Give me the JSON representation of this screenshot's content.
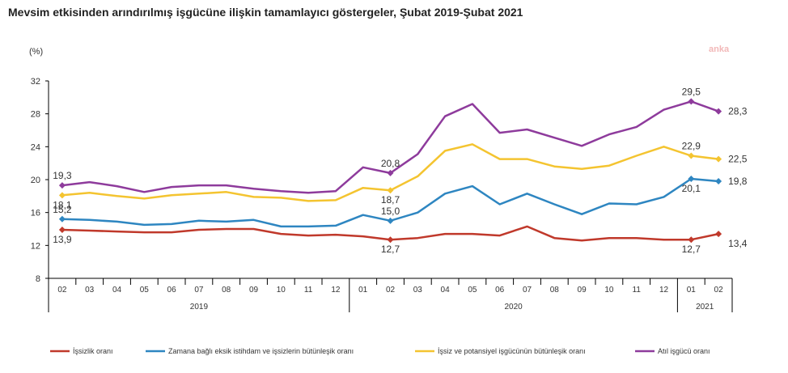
{
  "title": "Mevsim etkisinden arındırılmış işgücüne ilişkin tamamlayıcı göstergeler, Şubat 2019-Şubat 2021",
  "watermark": "anka",
  "chart_data": {
    "type": "line",
    "ylabel": "(%)",
    "ylim": [
      8,
      32
    ],
    "yticks": [
      8,
      12,
      16,
      20,
      24,
      28,
      32
    ],
    "grid": false,
    "legend_position": "bottom",
    "categories": [
      "02",
      "03",
      "04",
      "05",
      "06",
      "07",
      "08",
      "09",
      "10",
      "11",
      "12",
      "01",
      "02",
      "03",
      "04",
      "05",
      "06",
      "07",
      "08",
      "09",
      "10",
      "11",
      "12",
      "01",
      "02"
    ],
    "year_groups": [
      {
        "label": "2019",
        "start": 0,
        "end": 10
      },
      {
        "label": "2020",
        "start": 11,
        "end": 22
      },
      {
        "label": "2021",
        "start": 23,
        "end": 24
      }
    ],
    "series": [
      {
        "name": "İşsizlik oranı",
        "color": "#c0392b",
        "values": [
          13.9,
          13.8,
          13.7,
          13.6,
          13.6,
          13.9,
          14.0,
          14.0,
          13.4,
          13.2,
          13.3,
          13.1,
          12.7,
          12.9,
          13.4,
          13.4,
          13.2,
          14.3,
          12.9,
          12.6,
          12.9,
          12.9,
          12.7,
          12.7,
          13.4
        ]
      },
      {
        "name": "Zamana bağlı eksik istihdam ve işsizlerin bütünleşik oranı",
        "color": "#2e86c1",
        "values": [
          15.2,
          15.1,
          14.9,
          14.5,
          14.6,
          15.0,
          14.9,
          15.1,
          14.3,
          14.3,
          14.4,
          15.7,
          15.0,
          16.0,
          18.3,
          19.2,
          17.0,
          18.3,
          17.0,
          15.8,
          17.1,
          17.0,
          17.9,
          20.1,
          19.8
        ]
      },
      {
        "name": "İşsiz ve potansiyel işgücünün bütünleşik oranı",
        "color": "#f4c430",
        "values": [
          18.1,
          18.4,
          18.0,
          17.7,
          18.1,
          18.3,
          18.5,
          17.9,
          17.8,
          17.4,
          17.5,
          19.0,
          18.7,
          20.4,
          23.5,
          24.3,
          22.5,
          22.5,
          21.6,
          21.3,
          21.7,
          22.9,
          24.0,
          22.9,
          22.5
        ]
      },
      {
        "name": "Atıl işgücü oranı",
        "color": "#8e3b9c",
        "values": [
          19.3,
          19.7,
          19.2,
          18.5,
          19.1,
          19.3,
          19.3,
          18.9,
          18.6,
          18.4,
          18.6,
          21.5,
          20.8,
          23.1,
          27.7,
          29.2,
          25.7,
          26.1,
          25.1,
          24.1,
          25.5,
          26.4,
          28.5,
          29.5,
          28.3
        ]
      }
    ],
    "annotations": [
      {
        "series": 0,
        "index": 0,
        "text": "13,9",
        "pos": "below"
      },
      {
        "series": 0,
        "index": 12,
        "text": "12,7",
        "pos": "below"
      },
      {
        "series": 0,
        "index": 23,
        "text": "12,7",
        "pos": "below"
      },
      {
        "series": 0,
        "index": 24,
        "text": "13,4",
        "pos": "belowright"
      },
      {
        "series": 1,
        "index": 0,
        "text": "15,2",
        "pos": "above"
      },
      {
        "series": 1,
        "index": 12,
        "text": "15,0",
        "pos": "above"
      },
      {
        "series": 1,
        "index": 23,
        "text": "20,1",
        "pos": "below"
      },
      {
        "series": 1,
        "index": 24,
        "text": "19,8",
        "pos": "right"
      },
      {
        "series": 2,
        "index": 0,
        "text": "18,1",
        "pos": "below"
      },
      {
        "series": 2,
        "index": 12,
        "text": "18,7",
        "pos": "below"
      },
      {
        "series": 2,
        "index": 23,
        "text": "22,9",
        "pos": "above"
      },
      {
        "series": 2,
        "index": 24,
        "text": "22,5",
        "pos": "right"
      },
      {
        "series": 3,
        "index": 0,
        "text": "19,3",
        "pos": "above"
      },
      {
        "series": 3,
        "index": 12,
        "text": "20,8",
        "pos": "above"
      },
      {
        "series": 3,
        "index": 23,
        "text": "29,5",
        "pos": "above"
      },
      {
        "series": 3,
        "index": 24,
        "text": "28,3",
        "pos": "right"
      }
    ]
  }
}
